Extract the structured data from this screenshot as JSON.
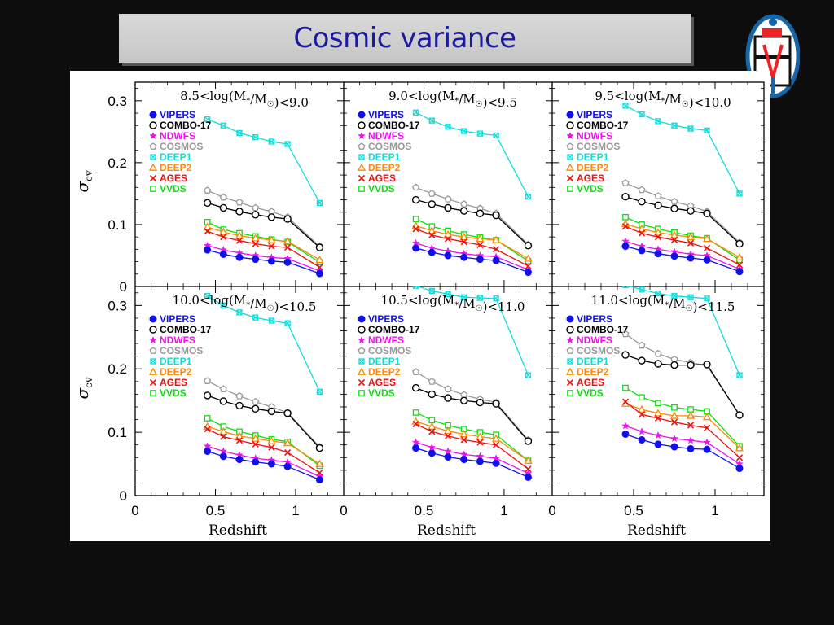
{
  "slide": {
    "title": "Cosmic variance"
  },
  "chart_data": {
    "type": "line",
    "xlabel": "Redshift",
    "ylabel_main": "σ",
    "ylabel_sub": "cv",
    "xlim": [
      0,
      1.3
    ],
    "ylim": [
      0,
      0.33
    ],
    "xticks": [
      "0",
      "0.5",
      "1"
    ],
    "yticks": [
      "0",
      "0.1",
      "0.2",
      "0.3"
    ],
    "x": [
      0.45,
      0.55,
      0.65,
      0.75,
      0.85,
      0.95,
      1.15
    ],
    "series_styles": [
      {
        "name": "VIPERS",
        "color": "#1010ee",
        "marker": "circle-filled"
      },
      {
        "name": "COMBO-17",
        "color": "#000000",
        "marker": "circle-open"
      },
      {
        "name": "NDWFS",
        "color": "#ee10ee",
        "marker": "star"
      },
      {
        "name": "COSMOS",
        "color": "#999999",
        "marker": "pentagon"
      },
      {
        "name": "DEEP1",
        "color": "#10dddd",
        "marker": "cross-box"
      },
      {
        "name": "DEEP2",
        "color": "#ff8800",
        "marker": "triangle"
      },
      {
        "name": "AGES",
        "color": "#ee1010",
        "marker": "x"
      },
      {
        "name": "VVDS",
        "color": "#10dd10",
        "marker": "square"
      }
    ],
    "panels": [
      {
        "label": "8.5<log(M*/M☉)<9.0",
        "series": {
          "VIPERS": [
            0.059,
            0.052,
            0.047,
            0.044,
            0.041,
            0.039,
            0.021
          ],
          "COMBO-17": [
            0.135,
            0.127,
            0.121,
            0.116,
            0.112,
            0.109,
            0.063
          ],
          "NDWFS": [
            0.066,
            0.059,
            0.054,
            0.05,
            0.047,
            0.045,
            0.025
          ],
          "COSMOS": [
            0.155,
            0.144,
            0.136,
            0.127,
            0.121,
            0.112,
            0.065
          ],
          "DEEP1": [
            0.27,
            0.26,
            0.248,
            0.241,
            0.234,
            0.23,
            0.135
          ],
          "DEEP2": [
            0.096,
            0.088,
            0.082,
            0.078,
            0.075,
            0.073,
            0.043
          ],
          "AGES": [
            0.089,
            0.08,
            0.074,
            0.069,
            0.065,
            0.063,
            0.031
          ],
          "VVDS": [
            0.104,
            0.092,
            0.086,
            0.081,
            0.076,
            0.072,
            0.039
          ]
        }
      },
      {
        "label": "9.0<log(M*/M☉)<9.5",
        "series": {
          "VIPERS": [
            0.062,
            0.055,
            0.05,
            0.047,
            0.044,
            0.042,
            0.023
          ],
          "COMBO-17": [
            0.14,
            0.133,
            0.127,
            0.122,
            0.118,
            0.115,
            0.066
          ],
          "NDWFS": [
            0.07,
            0.062,
            0.057,
            0.053,
            0.05,
            0.048,
            0.027
          ],
          "COSMOS": [
            0.16,
            0.15,
            0.141,
            0.133,
            0.126,
            0.118,
            0.068
          ],
          "DEEP1": [
            0.281,
            0.268,
            0.258,
            0.251,
            0.247,
            0.244,
            0.145
          ],
          "DEEP2": [
            0.098,
            0.09,
            0.084,
            0.08,
            0.077,
            0.075,
            0.045
          ],
          "AGES": [
            0.093,
            0.083,
            0.077,
            0.072,
            0.067,
            0.06,
            0.033
          ],
          "VVDS": [
            0.109,
            0.097,
            0.09,
            0.084,
            0.079,
            0.075,
            0.041
          ]
        }
      },
      {
        "label": "9.5<log(M*/M☉)<10.0",
        "series": {
          "VIPERS": [
            0.065,
            0.058,
            0.053,
            0.049,
            0.046,
            0.043,
            0.024
          ],
          "COMBO-17": [
            0.145,
            0.137,
            0.131,
            0.126,
            0.122,
            0.118,
            0.069
          ],
          "NDWFS": [
            0.073,
            0.065,
            0.06,
            0.056,
            0.052,
            0.05,
            0.028
          ],
          "COSMOS": [
            0.167,
            0.156,
            0.146,
            0.137,
            0.13,
            0.121,
            0.071
          ],
          "DEEP1": [
            0.292,
            0.278,
            0.267,
            0.26,
            0.255,
            0.252,
            0.15
          ],
          "DEEP2": [
            0.101,
            0.093,
            0.087,
            0.083,
            0.08,
            0.077,
            0.047
          ],
          "AGES": [
            0.097,
            0.086,
            0.08,
            0.075,
            0.07,
            0.062,
            0.035
          ],
          "VVDS": [
            0.112,
            0.1,
            0.093,
            0.087,
            0.082,
            0.078,
            0.043
          ]
        }
      },
      {
        "label": "10.0<log(M*/M☉)<10.5",
        "series": {
          "VIPERS": [
            0.07,
            0.062,
            0.057,
            0.053,
            0.05,
            0.046,
            0.025
          ],
          "COMBO-17": [
            0.158,
            0.149,
            0.142,
            0.137,
            0.133,
            0.13,
            0.075
          ],
          "NDWFS": [
            0.078,
            0.07,
            0.064,
            0.059,
            0.056,
            0.053,
            0.03
          ],
          "COSMOS": [
            0.181,
            0.168,
            0.157,
            0.148,
            0.14,
            0.131,
            0.077
          ],
          "DEEP1": [
            0.315,
            0.3,
            0.289,
            0.281,
            0.276,
            0.272,
            0.164
          ],
          "DEEP2": [
            0.109,
            0.101,
            0.094,
            0.09,
            0.086,
            0.083,
            0.05
          ],
          "AGES": [
            0.105,
            0.093,
            0.087,
            0.081,
            0.076,
            0.068,
            0.036
          ],
          "VVDS": [
            0.122,
            0.109,
            0.101,
            0.095,
            0.089,
            0.085,
            0.047
          ]
        }
      },
      {
        "label": "10.5<log(M*/M☉)<11.0",
        "series": {
          "VIPERS": [
            0.075,
            0.067,
            0.061,
            0.057,
            0.054,
            0.051,
            0.029
          ],
          "COMBO-17": [
            0.17,
            0.16,
            0.154,
            0.15,
            0.147,
            0.145,
            0.086
          ],
          "NDWFS": [
            0.084,
            0.076,
            0.07,
            0.065,
            0.062,
            0.059,
            0.035
          ],
          "COSMOS": [
            0.195,
            0.18,
            0.168,
            0.159,
            0.152,
            0.147,
            0.088
          ],
          "DEEP1": [
            0.331,
            0.323,
            0.318,
            0.313,
            0.312,
            0.311,
            0.19
          ],
          "DEEP2": [
            0.117,
            0.109,
            0.102,
            0.097,
            0.093,
            0.09,
            0.055
          ],
          "AGES": [
            0.113,
            0.101,
            0.094,
            0.088,
            0.084,
            0.08,
            0.042
          ],
          "VVDS": [
            0.131,
            0.119,
            0.111,
            0.105,
            0.1,
            0.096,
            0.055
          ]
        }
      },
      {
        "label": "11.0<log(M*/M☉)<11.5",
        "series": {
          "VIPERS": [
            0.097,
            0.088,
            0.081,
            0.077,
            0.074,
            0.073,
            0.043
          ],
          "COMBO-17": [
            0.222,
            0.213,
            0.208,
            0.206,
            0.206,
            0.207,
            0.127
          ],
          "NDWFS": [
            0.11,
            0.101,
            0.095,
            0.09,
            0.087,
            0.084,
            0.05
          ],
          "COSMOS": [
            0.255,
            0.237,
            0.224,
            0.215,
            0.21,
            0.205,
            0.128
          ],
          "DEEP1": [
            0.332,
            0.325,
            0.319,
            0.315,
            0.313,
            0.311,
            0.19
          ],
          "DEEP2": [
            0.145,
            0.136,
            0.13,
            0.126,
            0.126,
            0.124,
            0.075
          ],
          "AGES": [
            0.148,
            0.128,
            0.122,
            0.116,
            0.111,
            0.107,
            0.06
          ],
          "VVDS": [
            0.17,
            0.155,
            0.146,
            0.139,
            0.136,
            0.133,
            0.078
          ]
        }
      }
    ]
  }
}
